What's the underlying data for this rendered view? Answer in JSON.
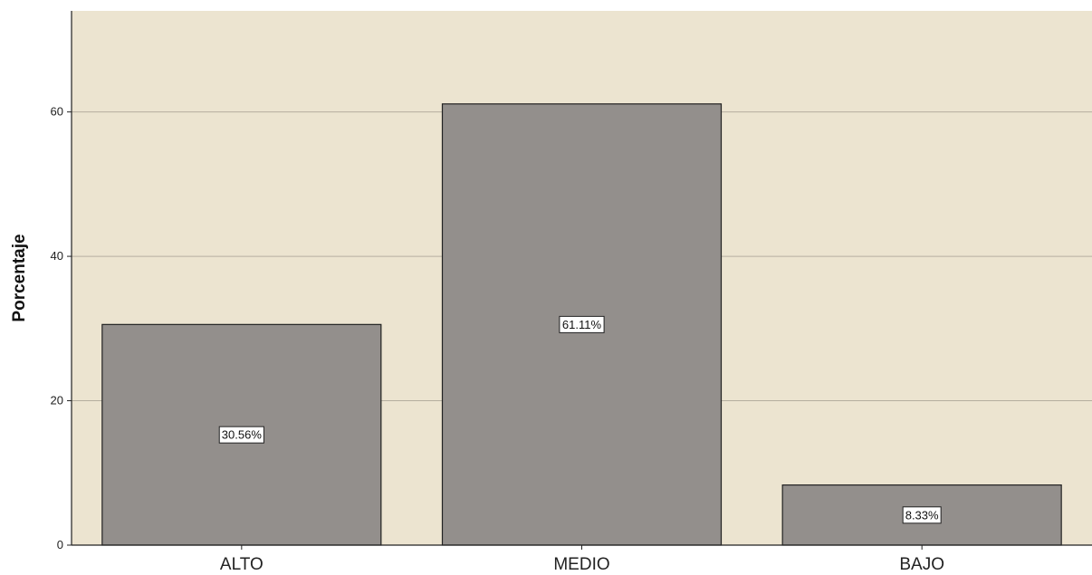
{
  "chart_data": {
    "type": "bar",
    "title": "",
    "xlabel": "",
    "ylabel": "Porcentaje",
    "categories": [
      "ALTO",
      "MEDIO",
      "BAJO"
    ],
    "values": [
      30.56,
      61.11,
      8.33
    ],
    "data_labels": [
      "30.56%",
      "61.11%",
      "8.33%"
    ],
    "ylim": [
      0,
      74
    ],
    "yticks": [
      0,
      20,
      40,
      60
    ],
    "grid": true,
    "colors": {
      "background": "#ece4d0",
      "bar": "#938f8c",
      "bar_edge": "#222222",
      "grid": "#b5ae9f",
      "label_box": "#ffffff"
    }
  }
}
